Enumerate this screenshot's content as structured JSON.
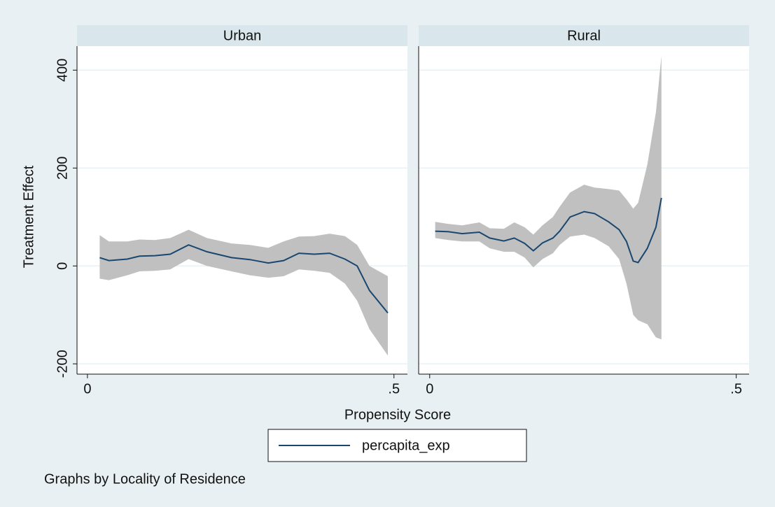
{
  "figure": {
    "x_label": "Propensity Score",
    "y_label": "Treatment Effect",
    "note": "Graphs by Locality of Residence"
  },
  "chart_data": [
    {
      "type": "line",
      "title": "Urban",
      "xlim": [
        -0.017,
        0.522
      ],
      "xticks": [
        0,
        {
          "value": 0.5,
          "label": ".5"
        }
      ],
      "ylim": [
        -221,
        449
      ],
      "yticks": [
        -200,
        0,
        200,
        400
      ],
      "grid": true,
      "band_color": "#c0c0c0",
      "series": [
        {
          "name": "percapita_exp",
          "color": "#1a476f",
          "x": [
            0.02,
            0.035,
            0.065,
            0.085,
            0.11,
            0.135,
            0.165,
            0.195,
            0.235,
            0.265,
            0.295,
            0.32,
            0.345,
            0.37,
            0.395,
            0.42,
            0.44,
            0.46,
            0.49
          ],
          "values": [
            17,
            11,
            14,
            20,
            21,
            24,
            43,
            29,
            17,
            13,
            6,
            11,
            26,
            24,
            26,
            14,
            0,
            -50,
            -96
          ],
          "upper": [
            63,
            50,
            50,
            54,
            53,
            57,
            74,
            57,
            46,
            43,
            37,
            50,
            60,
            61,
            66,
            61,
            43,
            0,
            -21
          ],
          "lower": [
            -26,
            -29,
            -19,
            -11,
            -10,
            -7,
            14,
            0,
            -11,
            -19,
            -24,
            -21,
            -7,
            -10,
            -14,
            -36,
            -71,
            -129,
            -183
          ]
        }
      ]
    },
    {
      "type": "line",
      "title": "Rural",
      "xlim": [
        -0.018,
        0.521
      ],
      "xticks": [
        0,
        {
          "value": 0.5,
          "label": ".5"
        }
      ],
      "ylim": [
        -221,
        449
      ],
      "yticks": [
        -200,
        0,
        200,
        400
      ],
      "grid": true,
      "band_color": "#c0c0c0",
      "series": [
        {
          "color": "#1a476f",
          "x": [
            0.009,
            0.03,
            0.053,
            0.081,
            0.098,
            0.121,
            0.138,
            0.155,
            0.169,
            0.184,
            0.201,
            0.212,
            0.229,
            0.252,
            0.269,
            0.292,
            0.309,
            0.321,
            0.332,
            0.34,
            0.355,
            0.369,
            0.378
          ],
          "values": [
            71,
            70,
            66,
            69,
            57,
            51,
            57,
            46,
            31,
            47,
            57,
            71,
            100,
            111,
            107,
            90,
            74,
            50,
            10,
            7,
            36,
            79,
            139
          ],
          "upper": [
            90,
            86,
            83,
            89,
            77,
            76,
            89,
            79,
            64,
            83,
            100,
            121,
            150,
            166,
            160,
            157,
            154,
            136,
            117,
            129,
            207,
            314,
            429
          ],
          "lower": [
            57,
            53,
            50,
            50,
            36,
            29,
            29,
            17,
            -3,
            14,
            26,
            43,
            60,
            64,
            57,
            40,
            14,
            -36,
            -100,
            -111,
            -119,
            -146,
            -150
          ]
        }
      ]
    }
  ]
}
